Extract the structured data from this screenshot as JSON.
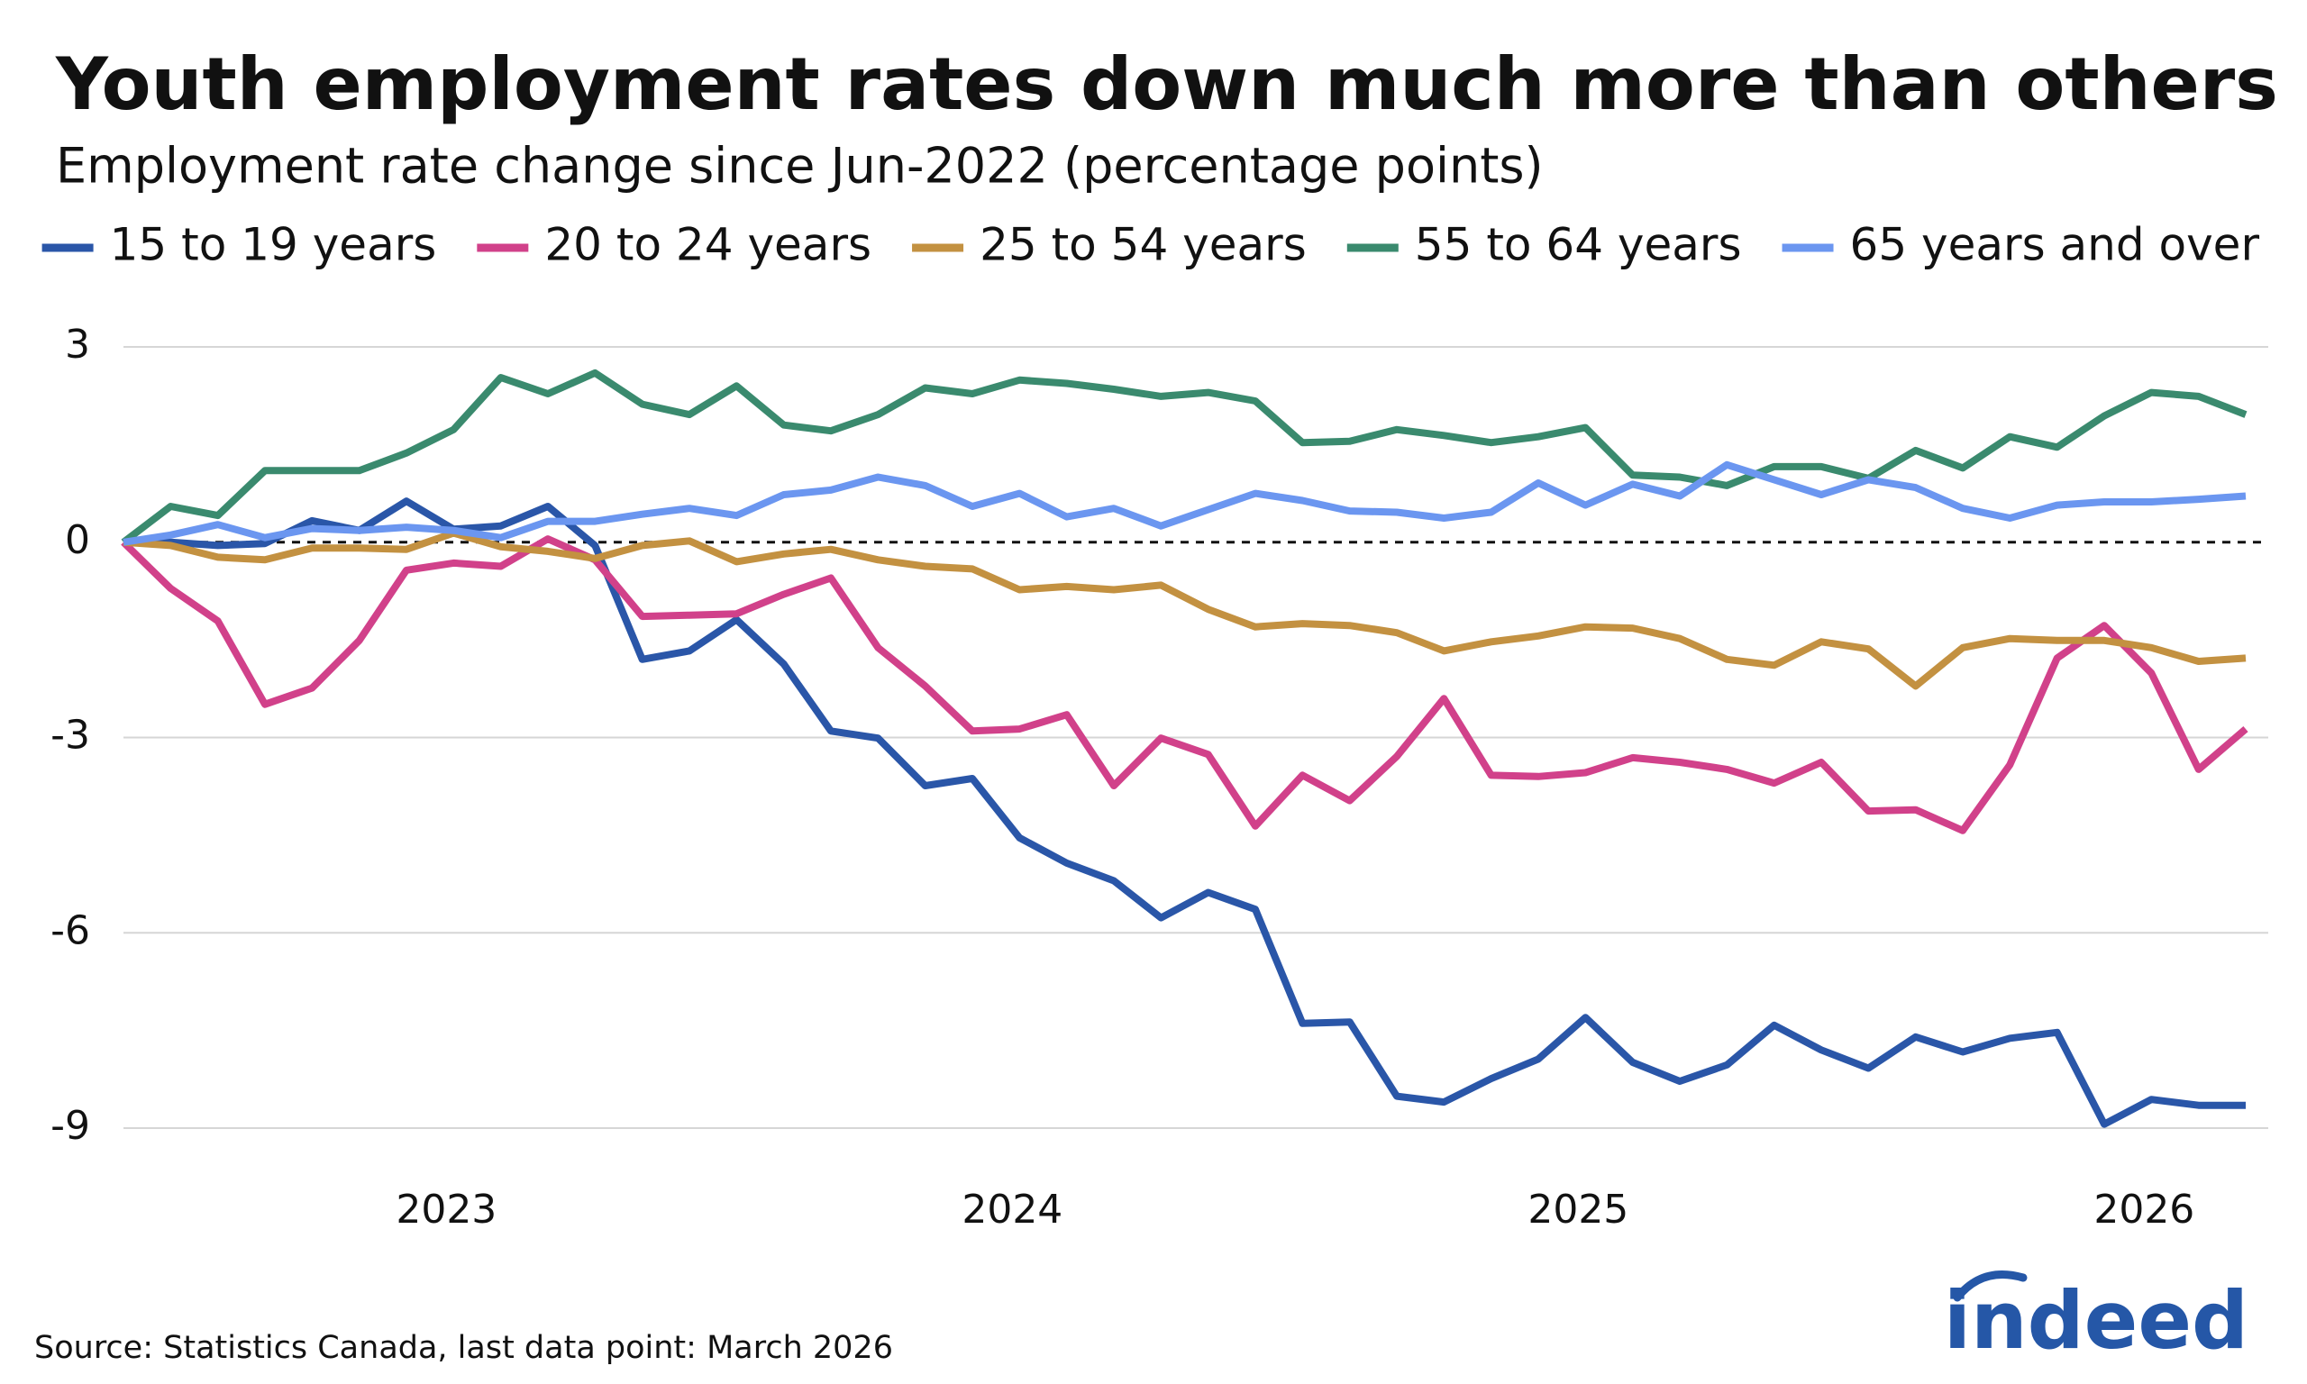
{
  "chart_data": {
    "type": "line",
    "title": "Youth employment rates down much more than others",
    "subtitle": "Employment rate change since Jun-2022 (percentage points)",
    "source": "Source: Statistics Canada, last data point: March 2026",
    "brand": "indeed",
    "categories": [
      null,
      null,
      null,
      null,
      null,
      null,
      null,
      "2023",
      null,
      null,
      null,
      null,
      null,
      null,
      null,
      null,
      null,
      null,
      null,
      "2024",
      null,
      null,
      null,
      null,
      null,
      null,
      null,
      null,
      null,
      null,
      null,
      "2025",
      null,
      null,
      null,
      null,
      null,
      null,
      null,
      null,
      null,
      null,
      null,
      "2026",
      null,
      null
    ],
    "series": [
      {
        "name": "15 to 19 years",
        "color": "#2a56a8",
        "values": [
          0,
          0,
          -0.05,
          -0.02,
          0.33,
          0.18,
          0.63,
          0.2,
          0.25,
          0.55,
          -0.05,
          -1.8,
          -1.67,
          -1.19,
          -1.87,
          -2.9,
          -3.01,
          -3.74,
          -3.63,
          -4.54,
          -4.93,
          -5.2,
          -5.77,
          -5.38,
          -5.64,
          -7.39,
          -7.37,
          -8.51,
          -8.6,
          -8.24,
          -7.94,
          -7.3,
          -7.99,
          -8.28,
          -8.03,
          -7.42,
          -7.8,
          -8.08,
          -7.6,
          -7.83,
          -7.62,
          -7.53,
          -8.94,
          -8.56,
          -8.65,
          -8.65
        ]
      },
      {
        "name": "20 to 24 years",
        "color": "#d1418a",
        "values": [
          0,
          -0.71,
          -1.21,
          -2.49,
          -2.24,
          -1.51,
          -0.43,
          -0.32,
          -0.37,
          0.05,
          -0.27,
          -1.14,
          -1.12,
          -1.1,
          -0.8,
          -0.55,
          -1.62,
          -2.21,
          -2.9,
          -2.87,
          -2.65,
          -3.74,
          -3.01,
          -3.26,
          -4.36,
          -3.58,
          -3.97,
          -3.29,
          -2.4,
          -3.58,
          -3.6,
          -3.54,
          -3.31,
          -3.38,
          -3.49,
          -3.7,
          -3.38,
          -4.13,
          -4.11,
          -4.43,
          -3.42,
          -1.78,
          -1.28,
          -2.01,
          -3.49,
          -2.87
        ]
      },
      {
        "name": "25 to 54 years",
        "color": "#c39141",
        "values": [
          0,
          -0.05,
          -0.23,
          -0.27,
          -0.09,
          -0.09,
          -0.11,
          0.14,
          -0.07,
          -0.14,
          -0.25,
          -0.05,
          0.02,
          -0.3,
          -0.18,
          -0.11,
          -0.27,
          -0.37,
          -0.41,
          -0.73,
          -0.68,
          -0.73,
          -0.66,
          -1.03,
          -1.3,
          -1.25,
          -1.28,
          -1.39,
          -1.67,
          -1.53,
          -1.44,
          -1.3,
          -1.32,
          -1.48,
          -1.8,
          -1.89,
          -1.53,
          -1.64,
          -2.21,
          -1.62,
          -1.48,
          -1.51,
          -1.51,
          -1.62,
          -1.83,
          -1.78
        ]
      },
      {
        "name": "55 to 64 years",
        "color": "#3a8a6e",
        "values": [
          0,
          0.55,
          0.41,
          1.1,
          1.1,
          1.1,
          1.37,
          1.73,
          2.53,
          2.28,
          2.6,
          2.12,
          1.96,
          2.4,
          1.8,
          1.71,
          1.96,
          2.37,
          2.28,
          2.49,
          2.44,
          2.35,
          2.24,
          2.3,
          2.17,
          1.53,
          1.55,
          1.73,
          1.64,
          1.53,
          1.62,
          1.76,
          1.03,
          1.0,
          0.87,
          1.16,
          1.16,
          0.98,
          1.41,
          1.14,
          1.62,
          1.46,
          1.94,
          2.3,
          2.24,
          1.96
        ]
      },
      {
        "name": "65 years and over",
        "color": "#6b96f0",
        "values": [
          0,
          0.11,
          0.27,
          0.07,
          0.21,
          0.18,
          0.23,
          0.18,
          0.07,
          0.32,
          0.32,
          0.43,
          0.52,
          0.41,
          0.73,
          0.8,
          1.0,
          0.87,
          0.55,
          0.75,
          0.39,
          0.52,
          0.25,
          0.5,
          0.75,
          0.64,
          0.48,
          0.46,
          0.37,
          0.46,
          0.91,
          0.57,
          0.89,
          0.71,
          1.19,
          0.96,
          0.73,
          0.96,
          0.84,
          0.52,
          0.37,
          0.57,
          0.62,
          0.62,
          0.66,
          0.71
        ]
      }
    ],
    "ylim": [
      -9,
      3
    ],
    "yticks": [
      3,
      0,
      -3,
      -6,
      -9
    ],
    "grid": true
  }
}
